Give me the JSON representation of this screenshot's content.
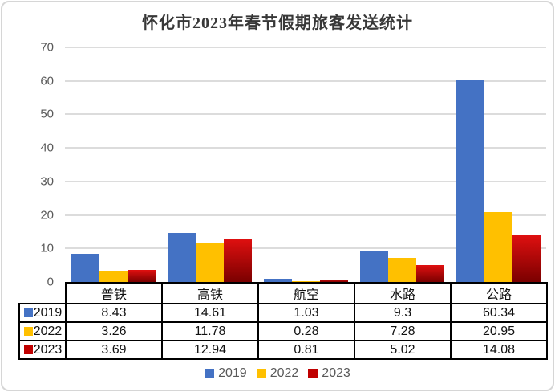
{
  "chart_data": {
    "type": "bar",
    "title": "怀化市2023年春节假期旅客发送统计",
    "categories": [
      "普铁",
      "高铁",
      "航空",
      "水路",
      "公路"
    ],
    "series": [
      {
        "name": "2019",
        "color": "#4472C4",
        "values": [
          8.43,
          14.61,
          1.03,
          9.3,
          60.34
        ]
      },
      {
        "name": "2022",
        "color": "#FFC000",
        "values": [
          3.26,
          11.78,
          0.28,
          7.28,
          20.95
        ]
      },
      {
        "name": "2023",
        "color": "#C00000",
        "gradient": [
          "#E01010",
          "#7A0000"
        ],
        "values": [
          3.69,
          12.94,
          0.81,
          5.02,
          14.08
        ]
      }
    ],
    "ylim": [
      0,
      70
    ],
    "yticks": [
      0,
      10,
      20,
      30,
      40,
      50,
      60,
      70
    ],
    "grid": true,
    "legend_position": "bottom",
    "gridline_color": "#dcdcdc",
    "table_border_color": "#000000"
  }
}
